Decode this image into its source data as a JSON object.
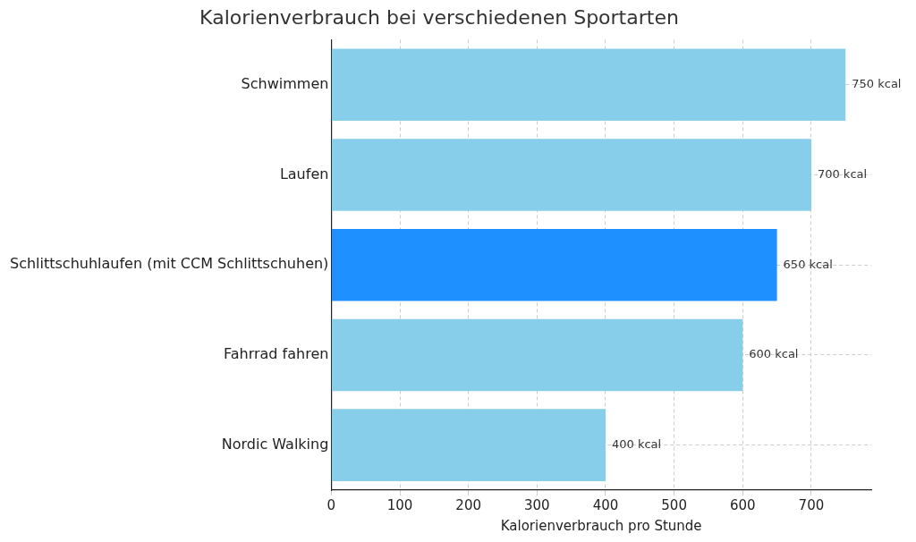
{
  "chart_data": {
    "type": "bar",
    "orientation": "horizontal",
    "title": "Kalorienverbrauch bei verschiedenen Sportarten",
    "x_label": "Kalorienverbrauch pro Stunde",
    "categories": [
      "Schwimmen",
      "Laufen",
      "Schlittschuhlaufen (mit CCM Schlittschuhen)",
      "Fahrrad fahren",
      "Nordic Walking"
    ],
    "values": [
      750,
      700,
      650,
      600,
      400
    ],
    "value_labels": [
      "750 kcal",
      "700 kcal",
      "650 kcal",
      "600 kcal",
      "400 kcal"
    ],
    "colors": [
      "#87ceeb",
      "#87ceeb",
      "#1e90ff",
      "#87ceeb",
      "#87ceeb"
    ],
    "xlim": [
      0,
      787.5
    ],
    "xticks": [
      0,
      100,
      200,
      300,
      400,
      500,
      600,
      700
    ],
    "grid": true,
    "data_labels": true
  }
}
